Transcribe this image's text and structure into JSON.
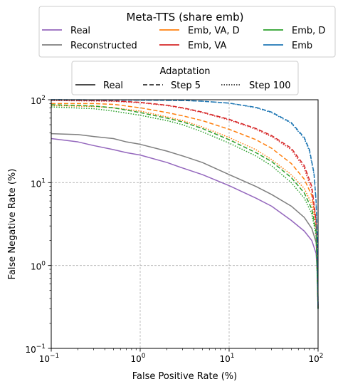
{
  "chart_data": {
    "type": "line",
    "xscale": "log",
    "yscale": "log",
    "xlabel": "False Positive Rate (%)",
    "ylabel": "False Negative Rate (%)",
    "xlim": [
      0.1,
      100
    ],
    "ylim": [
      0.1,
      100
    ],
    "grid": true,
    "x_ticks": [
      {
        "value": 0.1,
        "label": "10",
        "exp": "−1"
      },
      {
        "value": 1,
        "label": "10",
        "exp": "0"
      },
      {
        "value": 10,
        "label": "10",
        "exp": "1"
      },
      {
        "value": 100,
        "label": "10",
        "exp": "2"
      }
    ],
    "y_ticks": [
      {
        "value": 0.1,
        "label": "10",
        "exp": "−1"
      },
      {
        "value": 1,
        "label": "10",
        "exp": "0"
      },
      {
        "value": 10,
        "label": "10",
        "exp": "1"
      },
      {
        "value": 100,
        "label": "10",
        "exp": "2"
      }
    ],
    "legend1": {
      "title": "Meta-TTS (share emb)",
      "placement": "top",
      "entries": [
        {
          "label": "Real",
          "color": "#9467bd"
        },
        {
          "label": "Reconstructed",
          "color": "#7f7f7f"
        },
        {
          "label": "Emb, VA, D",
          "color": "#ff7f0e"
        },
        {
          "label": "Emb, VA",
          "color": "#d62728"
        },
        {
          "label": "Emb, D",
          "color": "#2ca02c"
        },
        {
          "label": "Emb",
          "color": "#1f77b4"
        }
      ]
    },
    "legend2": {
      "title": "Adaptation",
      "placement": "top",
      "entries": [
        {
          "label": "Real",
          "style": "solid"
        },
        {
          "label": "Step 5",
          "style": "dashed"
        },
        {
          "label": "Step 100",
          "style": "dotted"
        }
      ]
    },
    "series": [
      {
        "name": "Real",
        "color": "#9467bd",
        "style": "solid",
        "x": [
          0.1,
          0.2,
          0.3,
          0.5,
          0.7,
          1,
          2,
          3,
          5,
          10,
          20,
          30,
          50,
          70,
          85,
          95,
          99,
          100
        ],
        "y": [
          34,
          31,
          28,
          25,
          23,
          21.5,
          17.5,
          15,
          12.5,
          9.2,
          6.5,
          5.2,
          3.5,
          2.6,
          2,
          1.4,
          0.7,
          0.3
        ]
      },
      {
        "name": "Reconstructed",
        "color": "#7f7f7f",
        "style": "solid",
        "x": [
          0.1,
          0.2,
          0.3,
          0.5,
          0.7,
          1,
          2,
          3,
          5,
          10,
          20,
          30,
          50,
          70,
          85,
          95,
          99,
          100
        ],
        "y": [
          39,
          38,
          36,
          34,
          31,
          29,
          24,
          21,
          17.5,
          12.5,
          9,
          7.2,
          5.2,
          3.8,
          2.8,
          1.9,
          1,
          0.3
        ]
      },
      {
        "name": "Emb, VA, D (Step 5)",
        "color": "#ff7f0e",
        "style": "dashed",
        "x": [
          0.1,
          0.3,
          0.5,
          1,
          2,
          3,
          5,
          10,
          20,
          30,
          50,
          70,
          85,
          95,
          100
        ],
        "y": [
          90,
          90,
          88,
          80,
          70,
          64,
          56,
          44,
          33,
          26,
          17,
          11,
          7,
          3.5,
          0.3
        ]
      },
      {
        "name": "Emb, VA, D (Step 100)",
        "color": "#ff7f0e",
        "style": "dotted",
        "x": [
          0.1,
          0.3,
          0.5,
          1,
          2,
          3,
          5,
          10,
          20,
          30,
          50,
          70,
          85,
          95,
          100
        ],
        "y": [
          85,
          83,
          80,
          73,
          62,
          56,
          47,
          35,
          25,
          19,
          12.5,
          8.5,
          5.5,
          3,
          0.3
        ]
      },
      {
        "name": "Emb, VA (Step 5)",
        "color": "#d62728",
        "style": "dashed",
        "x": [
          0.1,
          0.5,
          1,
          2,
          3,
          5,
          10,
          20,
          30,
          50,
          70,
          85,
          95,
          100
        ],
        "y": [
          99,
          97,
          93,
          86,
          80,
          71,
          58,
          45,
          37,
          26,
          16,
          9,
          3.5,
          0.3
        ]
      },
      {
        "name": "Emb, VA (Step 100)",
        "color": "#d62728",
        "style": "dotted",
        "x": [
          0.1,
          0.5,
          1,
          2,
          3,
          5,
          10,
          20,
          30,
          50,
          70,
          85,
          95,
          100
        ],
        "y": [
          98,
          96,
          92,
          85,
          79,
          70,
          57,
          44,
          36,
          25,
          15,
          8,
          3,
          0.3
        ]
      },
      {
        "name": "Emb, D (Step 5)",
        "color": "#2ca02c",
        "style": "dashed",
        "x": [
          0.1,
          0.3,
          0.5,
          1,
          2,
          3,
          5,
          10,
          20,
          30,
          50,
          70,
          85,
          95,
          100
        ],
        "y": [
          87,
          84,
          80,
          70,
          60,
          54,
          45,
          33,
          23,
          18,
          11.5,
          7.5,
          4.8,
          2.6,
          0.3
        ]
      },
      {
        "name": "Emb, D (Step 100)",
        "color": "#2ca02c",
        "style": "dotted",
        "x": [
          0.1,
          0.3,
          0.5,
          1,
          2,
          3,
          5,
          10,
          20,
          30,
          50,
          70,
          85,
          95,
          100
        ],
        "y": [
          82,
          78,
          73,
          65,
          56,
          50,
          41,
          30,
          21,
          16,
          10,
          6.5,
          4.2,
          2.3,
          0.3
        ]
      },
      {
        "name": "Emb (Step 5)",
        "color": "#1f77b4",
        "style": "dashed",
        "x": [
          0.1,
          1,
          3,
          5,
          10,
          20,
          30,
          50,
          70,
          80,
          90,
          95,
          98,
          100
        ],
        "y": [
          100,
          99,
          98,
          96,
          91,
          81,
          71,
          53,
          35,
          25,
          13,
          6,
          2,
          0.3
        ]
      },
      {
        "name": "Emb (Step 100)",
        "color": "#1f77b4",
        "style": "dotted",
        "x": [
          0.1,
          1,
          3,
          5,
          10,
          20,
          30,
          50,
          70,
          80,
          90,
          95,
          98,
          100
        ],
        "y": [
          100,
          99,
          98,
          96,
          91,
          80,
          70,
          52,
          34,
          24,
          12.5,
          5.8,
          1.9,
          0.3
        ]
      }
    ]
  }
}
